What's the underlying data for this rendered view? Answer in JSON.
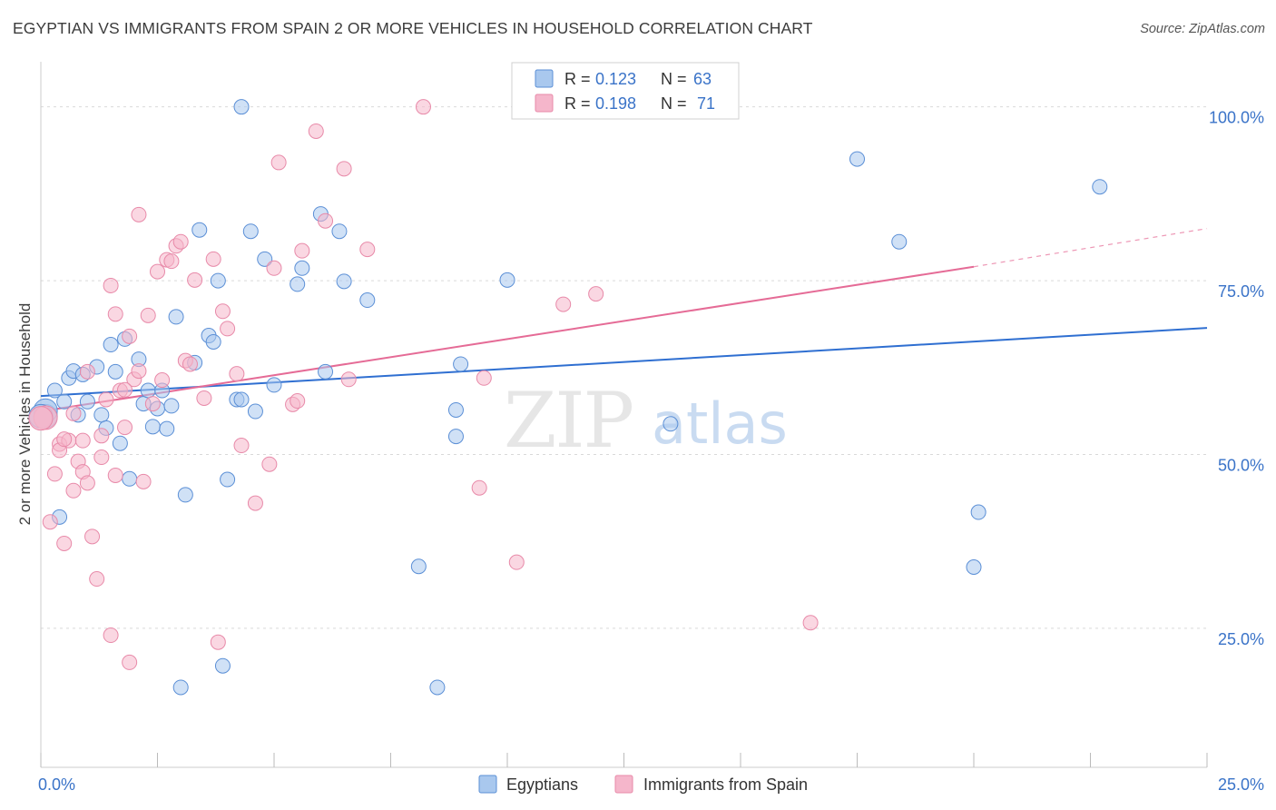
{
  "title": "EGYPTIAN VS IMMIGRANTS FROM SPAIN 2 OR MORE VEHICLES IN HOUSEHOLD CORRELATION CHART",
  "source": "Source: ZipAtlas.com",
  "watermark": {
    "zip": "ZIP",
    "atlas": "atlas"
  },
  "colors": {
    "blue_fill": "#a9c8ee",
    "blue_stroke": "#5b8fd6",
    "blue_line": "#2f6fd1",
    "pink_fill": "#f5b6cb",
    "pink_stroke": "#e88aa9",
    "pink_line": "#e56b96",
    "value_text": "#3a73c8",
    "grid": "#d9d9d9"
  },
  "legend": {
    "rows": [
      {
        "r_label": "R = ",
        "r_value": "0.123",
        "n_label": "N = ",
        "n_value": "63",
        "color": "blue"
      },
      {
        "r_label": "R = ",
        "r_value": "0.198",
        "n_label": "N = ",
        "n_value": "71",
        "color": "pink"
      }
    ]
  },
  "bottom_legend": [
    {
      "label": "Egyptians",
      "color": "blue"
    },
    {
      "label": "Immigrants from Spain",
      "color": "pink"
    }
  ],
  "chart_data": {
    "type": "scatter",
    "title": "EGYPTIAN VS IMMIGRANTS FROM SPAIN 2 OR MORE VEHICLES IN HOUSEHOLD CORRELATION CHART",
    "xlabel": "",
    "ylabel": "2 or more Vehicles in Household",
    "xlim": [
      0,
      25
    ],
    "ylim": [
      5,
      100
    ],
    "x_ticks": [
      0,
      2.5,
      5,
      7.5,
      10,
      12.5,
      15,
      17.5,
      20,
      22.5,
      25
    ],
    "x_tick_labels": [
      {
        "x": 0,
        "label": "0.0%"
      },
      {
        "x": 25,
        "label": "25.0%"
      }
    ],
    "y_ticks": [
      {
        "y": 25,
        "label": "25.0%"
      },
      {
        "y": 50,
        "label": "50.0%"
      },
      {
        "y": 75,
        "label": "75.0%"
      },
      {
        "y": 100,
        "label": "100.0%"
      }
    ],
    "grid": "horizontal dashed",
    "series": [
      {
        "name": "Egyptians",
        "color": "blue",
        "trend": {
          "x0": 0,
          "y0": 58.4,
          "x1": 25,
          "y1": 68.2
        },
        "points": [
          [
            0.1,
            55.5
          ],
          [
            0.1,
            56.3
          ],
          [
            0.3,
            59.2
          ],
          [
            0.4,
            41.0
          ],
          [
            0.5,
            57.6
          ],
          [
            0.6,
            61.0
          ],
          [
            0.7,
            62.0
          ],
          [
            0.8,
            55.7
          ],
          [
            0.9,
            61.5
          ],
          [
            1.0,
            57.6
          ],
          [
            1.2,
            62.6
          ],
          [
            1.3,
            55.7
          ],
          [
            1.4,
            53.8
          ],
          [
            1.5,
            65.8
          ],
          [
            1.6,
            61.9
          ],
          [
            1.7,
            51.6
          ],
          [
            1.8,
            66.6
          ],
          [
            1.9,
            46.5
          ],
          [
            2.1,
            63.7
          ],
          [
            2.2,
            57.3
          ],
          [
            2.3,
            59.2
          ],
          [
            2.4,
            54.0
          ],
          [
            2.5,
            56.6
          ],
          [
            2.6,
            59.2
          ],
          [
            2.7,
            53.7
          ],
          [
            2.8,
            57.0
          ],
          [
            2.9,
            69.8
          ],
          [
            3.0,
            16.5
          ],
          [
            3.1,
            44.2
          ],
          [
            3.3,
            63.2
          ],
          [
            3.4,
            82.3
          ],
          [
            3.6,
            67.1
          ],
          [
            3.7,
            66.2
          ],
          [
            3.8,
            75.0
          ],
          [
            3.9,
            19.6
          ],
          [
            4.0,
            46.4
          ],
          [
            4.2,
            57.9
          ],
          [
            4.3,
            57.9
          ],
          [
            4.5,
            82.1
          ],
          [
            4.6,
            56.2
          ],
          [
            4.8,
            78.1
          ],
          [
            5.0,
            60.0
          ],
          [
            5.5,
            74.5
          ],
          [
            5.6,
            76.8
          ],
          [
            6.0,
            84.6
          ],
          [
            6.1,
            61.9
          ],
          [
            6.4,
            82.1
          ],
          [
            6.5,
            74.9
          ],
          [
            7.0,
            72.2
          ],
          [
            4.3,
            100.0
          ],
          [
            8.1,
            33.9
          ],
          [
            8.5,
            16.5
          ],
          [
            8.9,
            56.4
          ],
          [
            8.9,
            52.6
          ],
          [
            9.0,
            63.0
          ],
          [
            10.0,
            75.1
          ],
          [
            13.5,
            54.4
          ],
          [
            17.5,
            92.5
          ],
          [
            18.4,
            80.6
          ],
          [
            20.1,
            41.7
          ],
          [
            20.0,
            33.8
          ],
          [
            22.7,
            88.5
          ],
          [
            0.0,
            55.5
          ]
        ]
      },
      {
        "name": "Immigrants from Spain",
        "color": "pink",
        "trend": {
          "x0": 0,
          "y0": 56.2,
          "x1": 20,
          "y1": 77.0,
          "dash_to": {
            "x": 25,
            "y": 82.5
          }
        },
        "points": [
          [
            0.1,
            55.3
          ],
          [
            0.2,
            40.3
          ],
          [
            0.3,
            47.2
          ],
          [
            0.4,
            51.5
          ],
          [
            0.4,
            50.6
          ],
          [
            0.5,
            37.2
          ],
          [
            0.6,
            52.0
          ],
          [
            0.7,
            55.9
          ],
          [
            0.7,
            44.8
          ],
          [
            0.8,
            49.0
          ],
          [
            0.9,
            52.0
          ],
          [
            0.9,
            47.5
          ],
          [
            1.0,
            45.9
          ],
          [
            1.0,
            61.9
          ],
          [
            1.1,
            38.2
          ],
          [
            1.2,
            32.1
          ],
          [
            1.3,
            52.7
          ],
          [
            1.3,
            49.6
          ],
          [
            1.4,
            57.9
          ],
          [
            1.5,
            74.3
          ],
          [
            1.5,
            24.0
          ],
          [
            1.6,
            47.0
          ],
          [
            1.6,
            70.2
          ],
          [
            1.7,
            59.2
          ],
          [
            1.8,
            53.9
          ],
          [
            1.9,
            20.1
          ],
          [
            1.9,
            67.0
          ],
          [
            2.0,
            60.8
          ],
          [
            2.1,
            62.0
          ],
          [
            2.1,
            84.5
          ],
          [
            2.2,
            46.1
          ],
          [
            2.3,
            70.0
          ],
          [
            2.4,
            57.3
          ],
          [
            2.5,
            76.3
          ],
          [
            2.6,
            60.7
          ],
          [
            2.7,
            78.0
          ],
          [
            2.8,
            77.8
          ],
          [
            2.9,
            80.0
          ],
          [
            3.0,
            80.6
          ],
          [
            3.1,
            63.5
          ],
          [
            3.2,
            63.0
          ],
          [
            3.3,
            75.1
          ],
          [
            3.5,
            58.1
          ],
          [
            3.7,
            78.1
          ],
          [
            3.8,
            23.0
          ],
          [
            3.9,
            70.6
          ],
          [
            4.0,
            68.1
          ],
          [
            4.2,
            61.6
          ],
          [
            4.3,
            51.3
          ],
          [
            4.6,
            43.0
          ],
          [
            4.9,
            48.6
          ],
          [
            5.1,
            92.0
          ],
          [
            5.0,
            76.8
          ],
          [
            5.4,
            57.2
          ],
          [
            5.5,
            57.7
          ],
          [
            5.6,
            79.3
          ],
          [
            5.9,
            96.5
          ],
          [
            6.1,
            83.6
          ],
          [
            6.5,
            91.1
          ],
          [
            6.6,
            60.8
          ],
          [
            7.0,
            79.5
          ],
          [
            8.2,
            100.0
          ],
          [
            9.4,
            45.2
          ],
          [
            9.5,
            61.0
          ],
          [
            10.2,
            34.5
          ],
          [
            11.2,
            71.6
          ],
          [
            11.9,
            73.1
          ],
          [
            16.5,
            25.8
          ],
          [
            1.8,
            59.3
          ],
          [
            0.5,
            52.2
          ],
          [
            0.0,
            55.2
          ]
        ]
      }
    ]
  }
}
